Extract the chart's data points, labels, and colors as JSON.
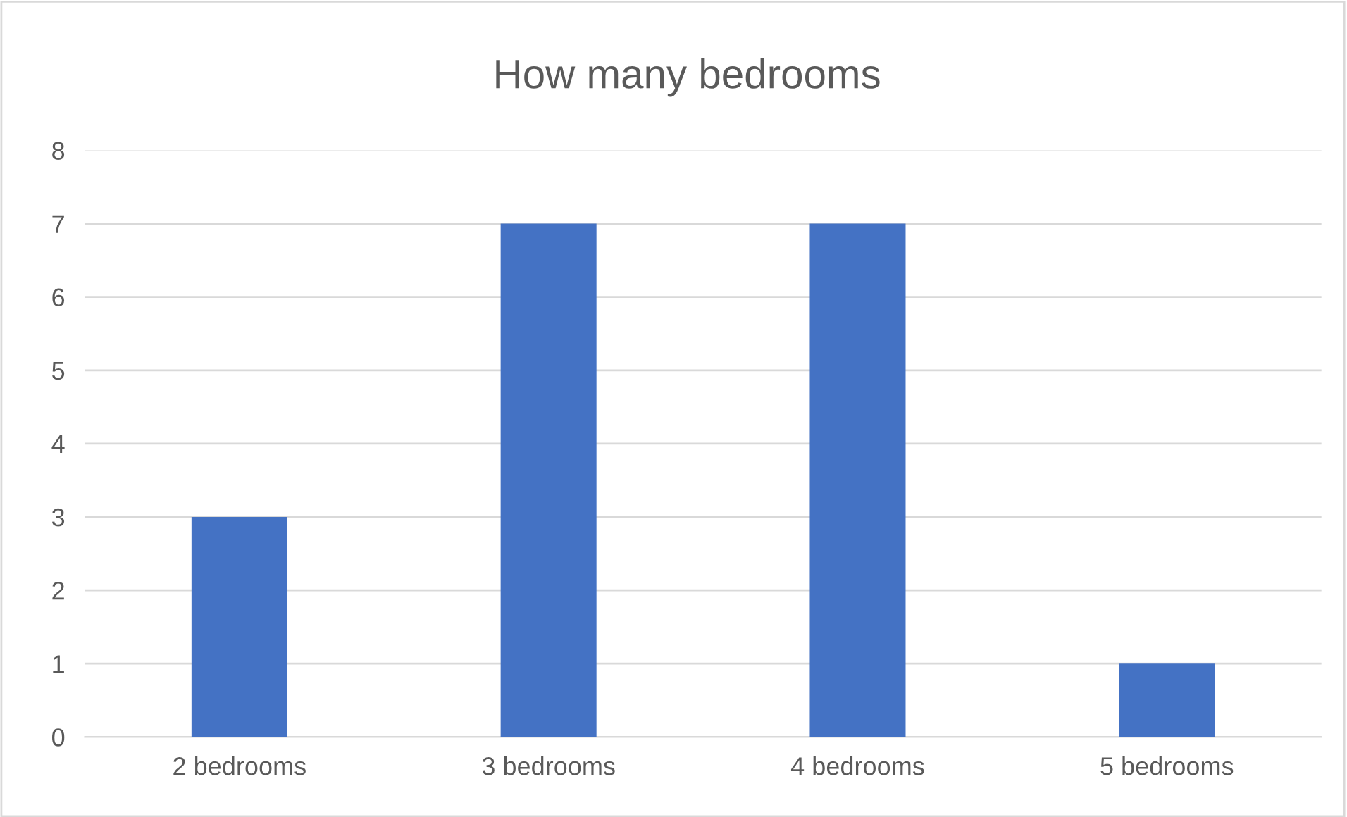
{
  "chart_data": {
    "type": "bar",
    "title": "How many bedrooms",
    "categories": [
      "2 bedrooms",
      "3 bedrooms",
      "4 bedrooms",
      "5 bedrooms"
    ],
    "values": [
      3,
      7,
      7,
      1
    ],
    "color": "#4472c4",
    "ylim": [
      0,
      8
    ],
    "yticks": [
      0,
      1,
      2,
      3,
      4,
      5,
      6,
      7,
      8
    ],
    "grid": "y",
    "legend": false
  }
}
